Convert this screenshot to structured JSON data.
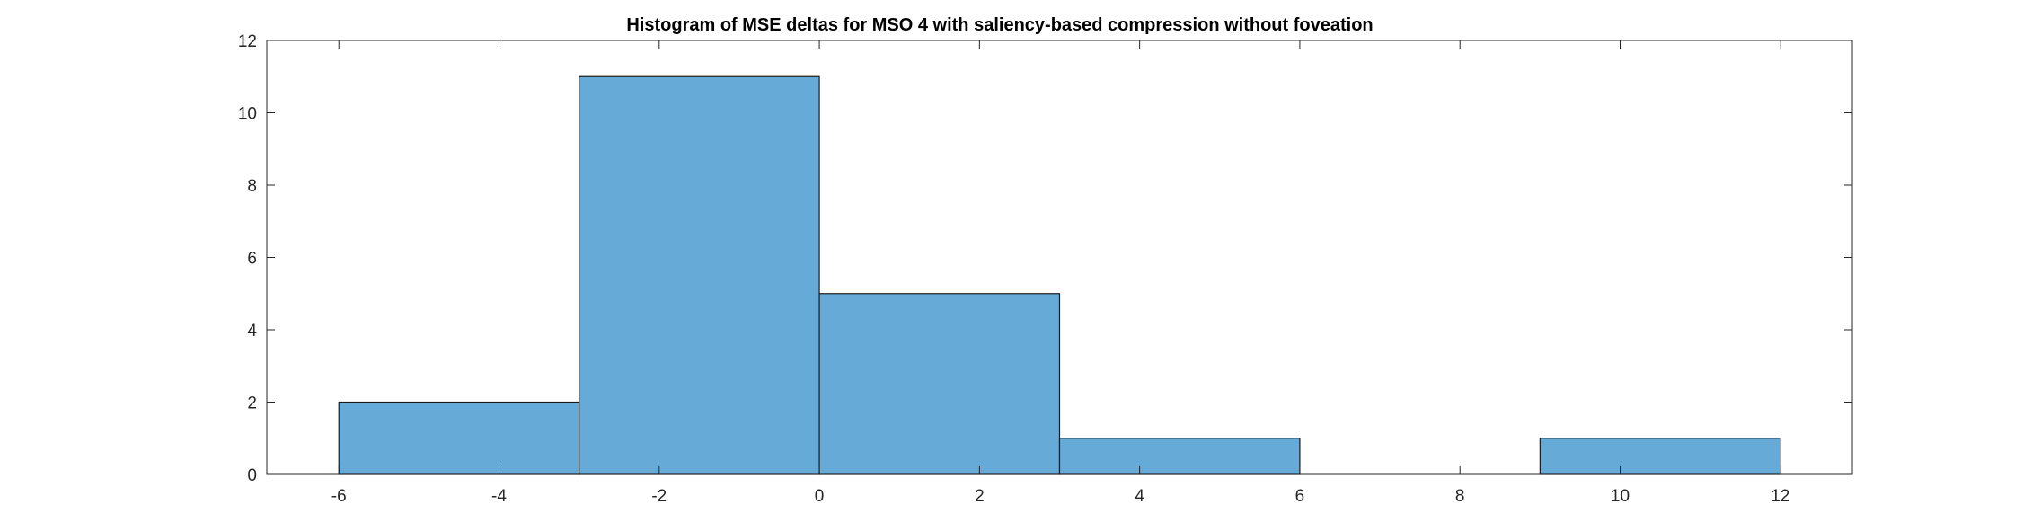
{
  "chart_data": {
    "type": "bar",
    "histogram": true,
    "title": "Histogram of MSE deltas for MSO 4 with saliency-based compression without foveation",
    "xlabel": "",
    "ylabel": "",
    "bin_edges": [
      -6,
      -3,
      0,
      3,
      6,
      9,
      12
    ],
    "values": [
      2,
      11,
      5,
      1,
      0,
      1
    ],
    "xlim": [
      -6.9,
      12.9
    ],
    "ylim": [
      0,
      12
    ],
    "xticks": [
      -6,
      -4,
      -2,
      0,
      2,
      4,
      6,
      8,
      10,
      12
    ],
    "yticks": [
      0,
      2,
      4,
      6,
      8,
      10,
      12
    ],
    "xtick_labels": [
      "-6",
      "-4",
      "-2",
      "0",
      "2",
      "4",
      "6",
      "8",
      "10",
      "12"
    ],
    "ytick_labels": [
      "0",
      "2",
      "4",
      "6",
      "8",
      "10",
      "12"
    ],
    "bar_color": "#66aad7",
    "edge_color": "#1a1a1a",
    "grid": false,
    "legend": "none"
  }
}
